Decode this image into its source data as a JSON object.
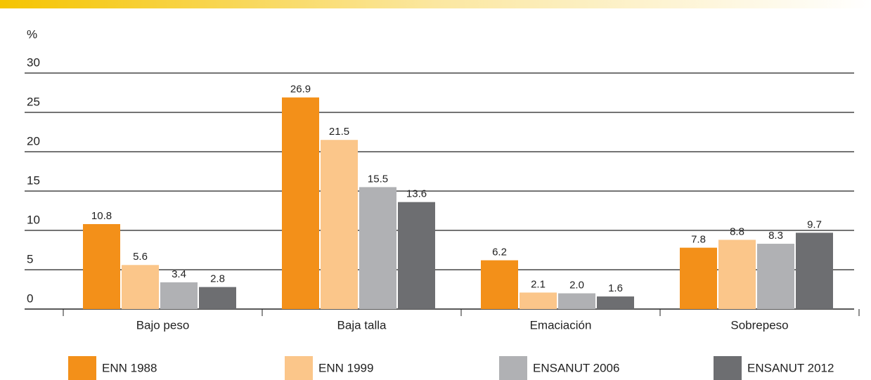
{
  "chart_data": {
    "type": "bar",
    "y_label": "%",
    "categories": [
      "Bajo peso",
      "Baja talla",
      "Emaciación",
      "Sobrepeso"
    ],
    "series": [
      {
        "name": "ENN 1988",
        "color": "#f39019",
        "values": [
          10.8,
          26.9,
          6.2,
          7.8
        ],
        "value_labels": [
          "10.8",
          "26.9",
          "6.2",
          "7.8"
        ]
      },
      {
        "name": "ENN 1999",
        "color": "#fbc68a",
        "values": [
          5.6,
          21.5,
          2.1,
          8.8
        ],
        "value_labels": [
          "5.6",
          "21.5",
          "2.1",
          "8.8"
        ]
      },
      {
        "name": "ENSANUT 2006",
        "color": "#b0b1b4",
        "values": [
          3.4,
          15.5,
          2.0,
          8.3
        ],
        "value_labels": [
          "3.4",
          "15.5",
          "2.0",
          "8.3"
        ]
      },
      {
        "name": "ENSANUT 2012",
        "color": "#6d6e71",
        "values": [
          2.8,
          13.6,
          1.6,
          9.7
        ],
        "value_labels": [
          "2.8",
          "13.6",
          "1.6",
          "9.7"
        ]
      }
    ],
    "ylim": [
      0,
      30
    ],
    "yticks": [
      0,
      5,
      10,
      15,
      20,
      25,
      30
    ],
    "grid": true,
    "legend": "bottom"
  }
}
